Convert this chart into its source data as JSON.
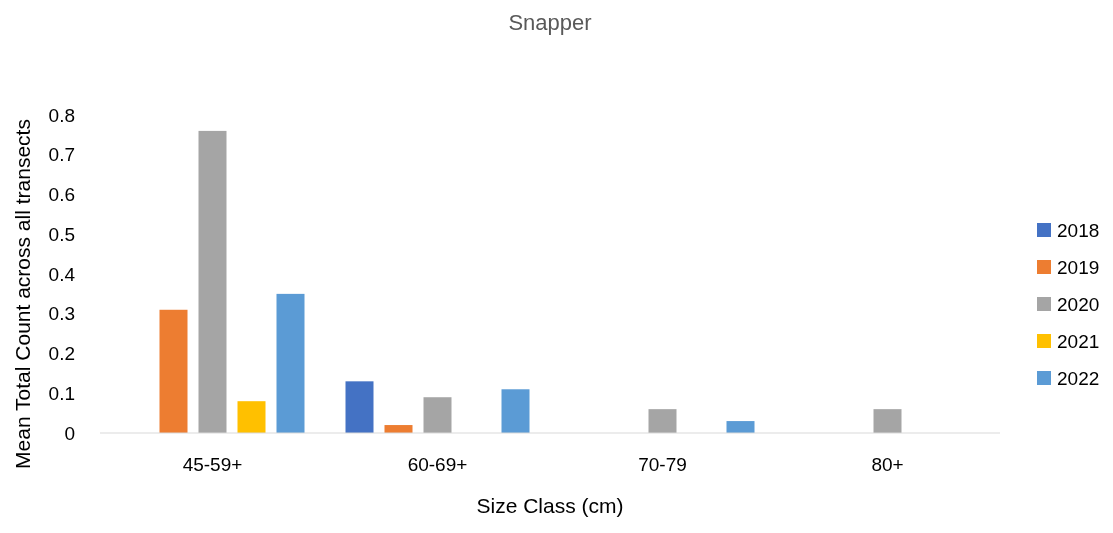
{
  "chart_data": {
    "type": "bar",
    "title": "Snapper",
    "xlabel": "Size Class (cm)",
    "ylabel": "Mean Total Count across all transects",
    "categories": [
      "45-59+",
      "60-69+",
      "70-79",
      "80+"
    ],
    "series": [
      {
        "name": "2018",
        "color": "#4472c4",
        "values": [
          0,
          0.13,
          0,
          0
        ]
      },
      {
        "name": "2019",
        "color": "#ed7d31",
        "values": [
          0.31,
          0.02,
          0,
          0
        ]
      },
      {
        "name": "2020",
        "color": "#a5a5a5",
        "values": [
          0.76,
          0.09,
          0.06,
          0.06
        ]
      },
      {
        "name": "2021",
        "color": "#ffc000",
        "values": [
          0.08,
          0,
          0,
          0
        ]
      },
      {
        "name": "2022",
        "color": "#5b9bd5",
        "values": [
          0.35,
          0.11,
          0.03,
          0
        ]
      }
    ],
    "ylim": [
      0,
      0.8
    ],
    "yticks": [
      0,
      0.1,
      0.2,
      0.3,
      0.4,
      0.5,
      0.6,
      0.7,
      0.8
    ],
    "grid": false,
    "legend": "right"
  }
}
